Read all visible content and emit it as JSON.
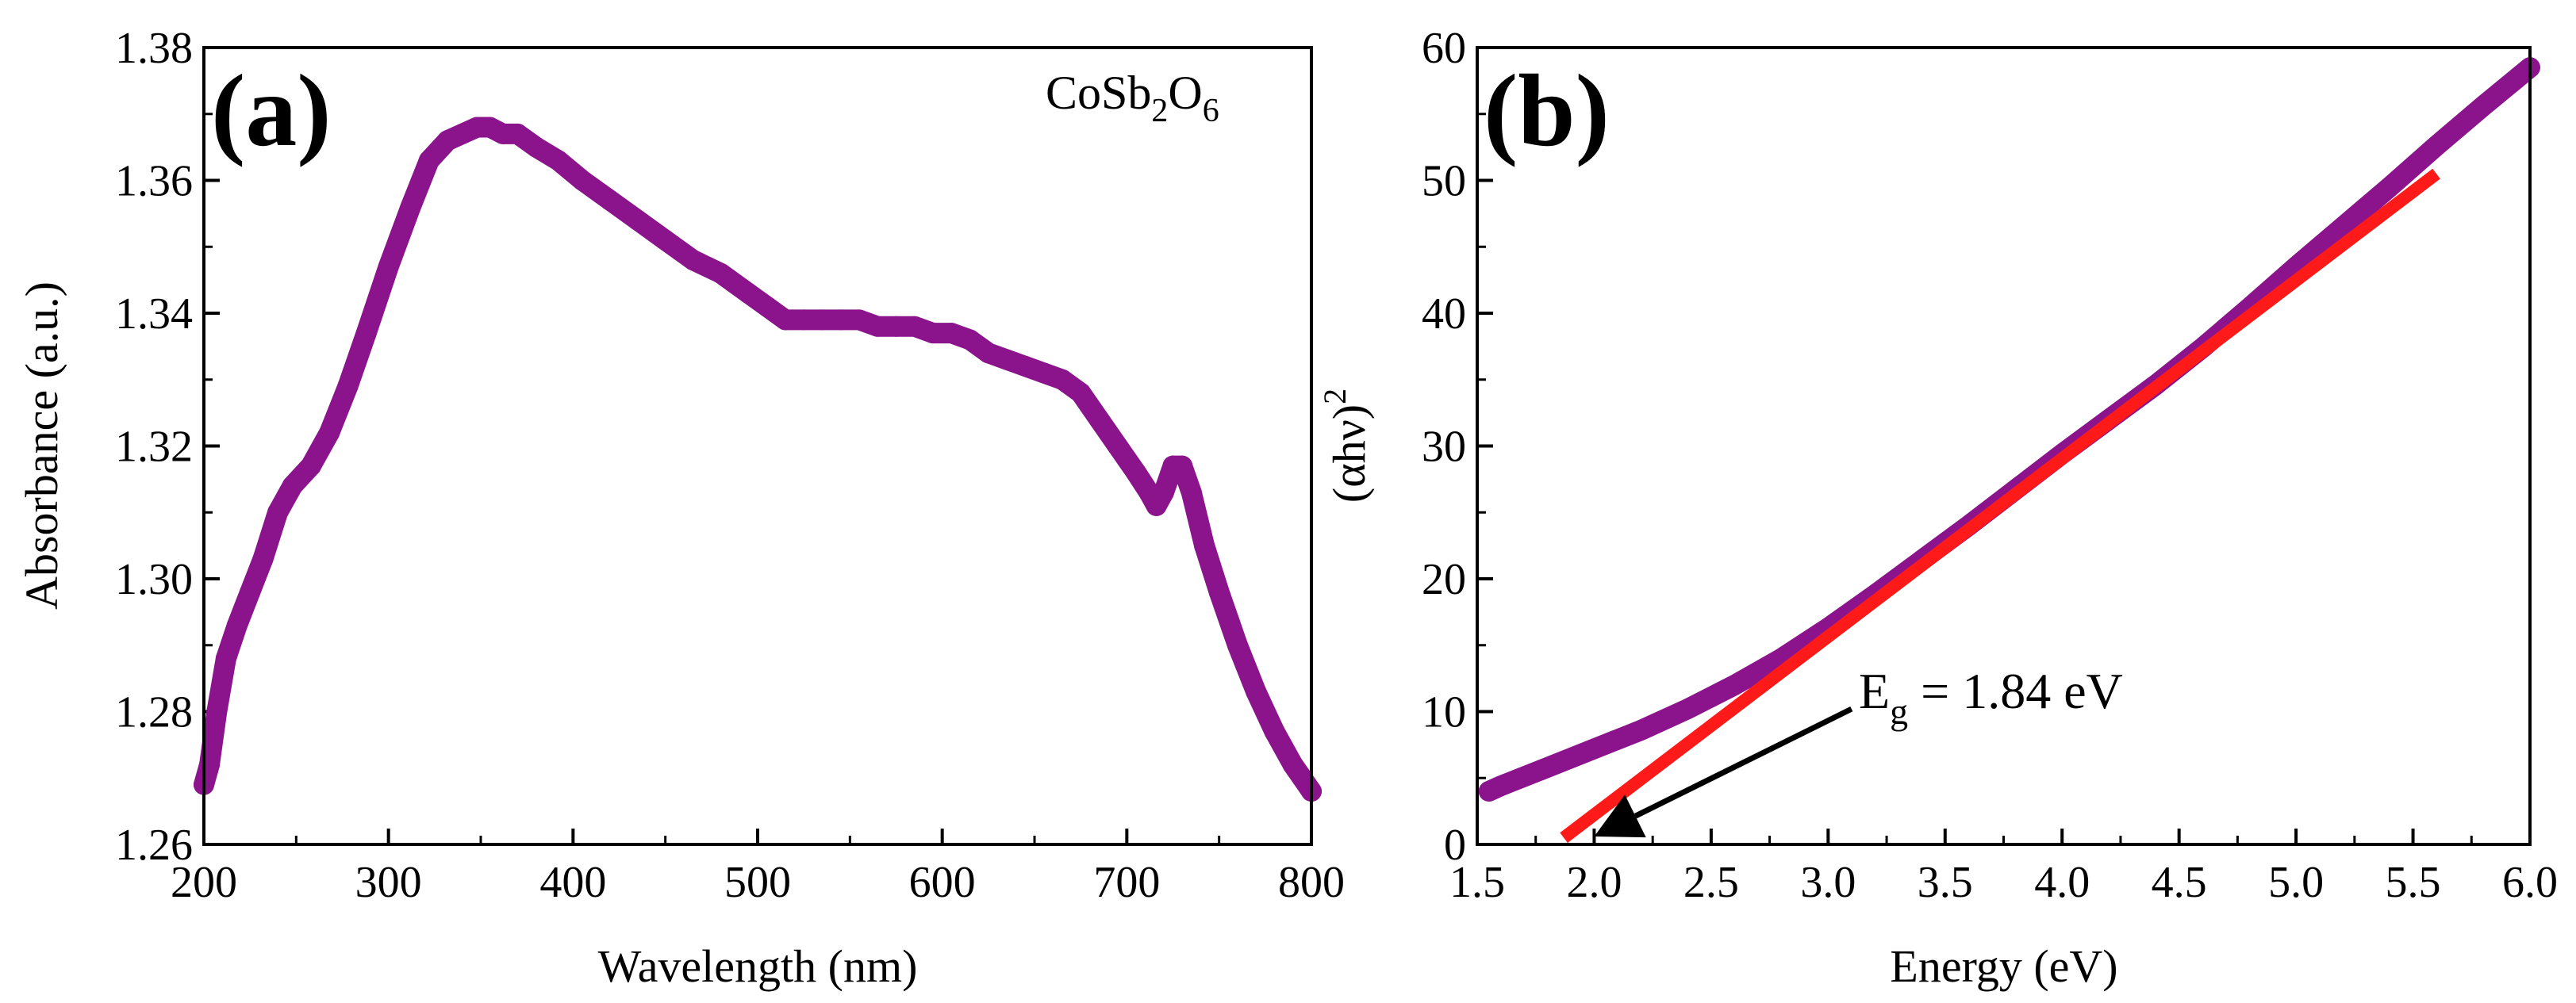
{
  "colors": {
    "curve": "#8b138b",
    "fit": "#ff1a1a",
    "arrow": "#000000",
    "axis": "#000000"
  },
  "chart_data": [
    {
      "panel_label": "(a)",
      "type": "scatter",
      "xlabel": "Wavelength (nm)",
      "ylabel": "Absorbance (a.u.)",
      "annotation": {
        "base": "CoSb",
        "sub1": "2",
        "mid": "O",
        "sub2": "6"
      },
      "xlim": [
        200,
        800
      ],
      "ylim": [
        1.26,
        1.38
      ],
      "xticks": [
        200,
        300,
        400,
        500,
        600,
        700,
        800
      ],
      "yticks": [
        1.26,
        1.28,
        1.3,
        1.32,
        1.34,
        1.36,
        1.38
      ],
      "xtick_labels": [
        "200",
        "300",
        "400",
        "500",
        "600",
        "700",
        "800"
      ],
      "ytick_labels": [
        "1.26",
        "1.28",
        "1.30",
        "1.32",
        "1.34",
        "1.36",
        "1.38"
      ],
      "grid": false,
      "series": [
        {
          "x": [
            200,
            203,
            207,
            212,
            218,
            225,
            232,
            240,
            248,
            258,
            268,
            278,
            288,
            300,
            312,
            322,
            332,
            340,
            348,
            355,
            362,
            370,
            380,
            392,
            405,
            420,
            435,
            450,
            465,
            480,
            495,
            505,
            515,
            525,
            535,
            545,
            555,
            565,
            575,
            585,
            595,
            605,
            615,
            625,
            635,
            645,
            655,
            665,
            675,
            685,
            695,
            705,
            712,
            716,
            720,
            725,
            730,
            735,
            742,
            750,
            760,
            770,
            780,
            790,
            795,
            800
          ],
          "y": [
            1.269,
            1.272,
            1.28,
            1.288,
            1.293,
            1.298,
            1.303,
            1.31,
            1.314,
            1.317,
            1.322,
            1.329,
            1.337,
            1.347,
            1.356,
            1.363,
            1.366,
            1.367,
            1.368,
            1.368,
            1.367,
            1.367,
            1.365,
            1.363,
            1.36,
            1.357,
            1.354,
            1.351,
            1.348,
            1.346,
            1.343,
            1.341,
            1.339,
            1.339,
            1.339,
            1.339,
            1.339,
            1.338,
            1.338,
            1.338,
            1.337,
            1.337,
            1.336,
            1.334,
            1.333,
            1.332,
            1.331,
            1.33,
            1.328,
            1.324,
            1.32,
            1.316,
            1.313,
            1.311,
            1.313,
            1.317,
            1.317,
            1.313,
            1.305,
            1.298,
            1.29,
            1.283,
            1.277,
            1.272,
            1.27,
            1.268
          ]
        }
      ]
    },
    {
      "panel_label": "(b)",
      "type": "line",
      "xlabel": "Energy (eV)",
      "ylabel": {
        "text": "(αhν)",
        "sup": "2"
      },
      "xlim": [
        1.5,
        6.0
      ],
      "ylim": [
        0,
        60
      ],
      "xticks": [
        1.5,
        2.0,
        2.5,
        3.0,
        3.5,
        4.0,
        4.5,
        5.0,
        5.5,
        6.0
      ],
      "yticks": [
        0,
        10,
        20,
        30,
        40,
        50,
        60
      ],
      "xtick_labels": [
        "1.5",
        "2.0",
        "2.5",
        "3.0",
        "3.5",
        "4.0",
        "4.5",
        "5.0",
        "5.5",
        "6.0"
      ],
      "ytick_labels": [
        "0",
        "10",
        "20",
        "30",
        "40",
        "50",
        "60"
      ],
      "grid": false,
      "series": [
        {
          "x": [
            1.55,
            1.6,
            1.8,
            2.0,
            2.2,
            2.4,
            2.6,
            2.8,
            3.0,
            3.2,
            3.4,
            3.6,
            3.8,
            4.0,
            4.2,
            4.4,
            4.6,
            4.8,
            5.0,
            5.2,
            5.4,
            5.6,
            5.8,
            6.0
          ],
          "y": [
            4.0,
            4.4,
            5.8,
            7.2,
            8.6,
            10.2,
            12.0,
            14.0,
            16.3,
            18.8,
            21.4,
            24.0,
            26.7,
            29.4,
            32.0,
            34.6,
            37.4,
            40.4,
            43.5,
            46.5,
            49.5,
            52.6,
            55.6,
            58.5
          ]
        },
        {
          "x": [
            1.87,
            5.6
          ],
          "y": [
            0.5,
            50.5
          ]
        }
      ],
      "annotation": {
        "base": "E",
        "sub": "g",
        "rest": " = 1.84 eV",
        "arrow_from": [
          3.1,
          10.2
        ],
        "arrow_to": [
          2.0,
          0.6
        ]
      }
    }
  ]
}
